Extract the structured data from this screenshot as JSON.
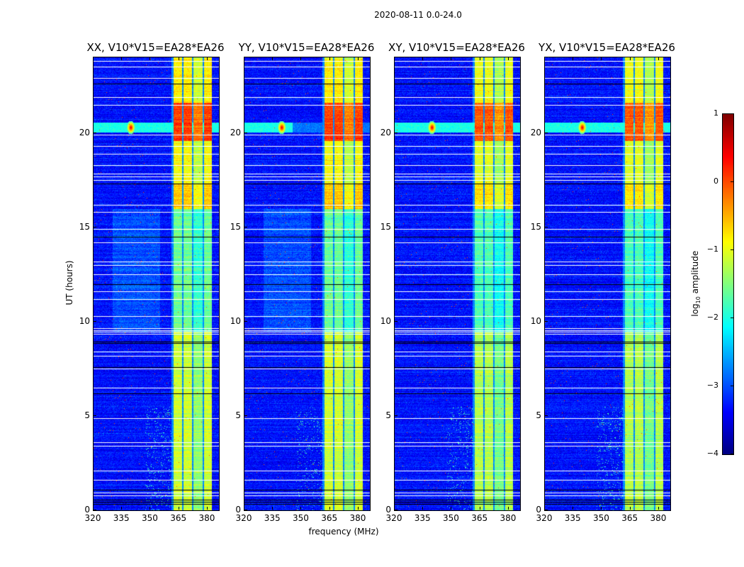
{
  "chart_data": {
    "type": "heatmap",
    "suptitle": "2020-08-11 0.0-24.0",
    "panels": [
      {
        "title": "XX, V10*V15=EA28*EA26",
        "pol": "XX"
      },
      {
        "title": "YY, V10*V15=EA28*EA26",
        "pol": "YY"
      },
      {
        "title": "XY, V10*V15=EA28*EA26",
        "pol": "XY"
      },
      {
        "title": "YX, V10*V15=EA28*EA26",
        "pol": "YX"
      }
    ],
    "xlabel": "frequency (MHz)",
    "ylabel": "UT (hours)",
    "xlim": [
      320,
      386
    ],
    "ylim": [
      0,
      24
    ],
    "xticks": [
      320,
      335,
      350,
      365,
      380
    ],
    "xtick_labels": [
      "320",
      "335",
      "350",
      "365",
      "380"
    ],
    "yticks": [
      0,
      5,
      10,
      15,
      20
    ],
    "ytick_labels": [
      "0",
      "5",
      "10",
      "15",
      "20"
    ],
    "colorbar": {
      "label_main": "log",
      "label_sub": "10",
      "label_rest": " amplitude",
      "range": [
        -4,
        1
      ],
      "ticks": [
        1,
        0,
        -1,
        -2,
        -3,
        -4
      ],
      "tick_labels": [
        "1",
        "0",
        "−1",
        "−2",
        "−3",
        "−4"
      ],
      "colormap": "jet"
    },
    "background_log_amplitude": -3.3,
    "rfi_bands_mhz": [
      [
        362,
        366.3
      ],
      [
        367,
        371.6
      ],
      [
        372.3,
        377.2
      ],
      [
        377.8,
        382
      ]
    ],
    "rfi_levels_by_hour": [
      {
        "from": 0,
        "to": 9.5,
        "level": -1.1
      },
      {
        "from": 9.5,
        "to": 16,
        "level": -1.6
      },
      {
        "from": 16,
        "to": 17.3,
        "level": -0.6
      },
      {
        "from": 17.3,
        "to": 19.6,
        "level": -0.9
      },
      {
        "from": 19.6,
        "to": 21.6,
        "level": 0.1
      },
      {
        "from": 21.6,
        "to": 24,
        "level": -0.8
      }
    ],
    "point_source": {
      "freq_mhz": 339.5,
      "hour": 20.3,
      "peak": 0.6
    },
    "flagged_rows_white_hours": [
      0.8,
      0.95,
      1.6,
      2.1,
      3.4,
      3.6,
      4.9,
      6.5,
      7.5,
      8.2,
      8.4,
      9.35,
      9.45,
      9.55,
      9.65,
      10.3,
      11.2,
      11.6,
      12.5,
      13.0,
      13.2,
      14.2,
      14.9,
      15.8,
      16.2,
      17.5,
      17.7,
      17.85,
      18.3,
      18.9,
      19.3,
      19.9,
      21.5,
      21.9,
      22.9,
      23.5,
      23.8
    ],
    "flagged_rows_black_hours": [
      0.35,
      0.45,
      0.55,
      1.1,
      6.2,
      7.6,
      8.85,
      8.95,
      12.0,
      14.5,
      17.3,
      22.6
    ]
  }
}
